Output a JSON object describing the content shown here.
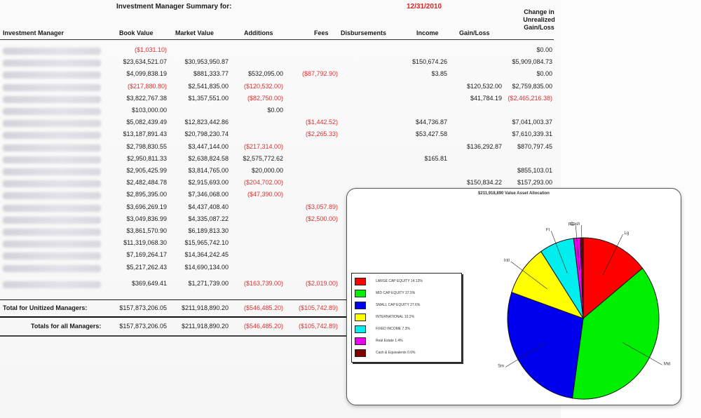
{
  "report": {
    "title": "Investment Manager Summary for:",
    "date": "12/31/2010",
    "change_header": [
      "Change in",
      "Unrealized",
      "Gain/Loss"
    ],
    "columns": [
      "Investment Manager",
      "Book Value",
      "Market Value",
      "Additions",
      "Fees",
      "Disbursements",
      "Income",
      "Gain/Loss"
    ],
    "rows": [
      {
        "book": "($1,031.10)",
        "market": "",
        "add": "",
        "fees": "",
        "disb": "",
        "income": "",
        "gain": "",
        "chg": "$0.00"
      },
      {
        "book": "$23,634,521.07",
        "market": "$30,953,950.87",
        "add": "",
        "fees": "",
        "disb": "",
        "income": "$150,674.26",
        "gain": "",
        "chg": "$5,909,084.73"
      },
      {
        "book": "$4,099,838.19",
        "market": "$881,333.77",
        "add": "$532,095.00",
        "fees": "($87,792.90)",
        "disb": "",
        "income": "$3.85",
        "gain": "",
        "chg": "$0.00"
      },
      {
        "book": "($217,880.80)",
        "market": "$2,541,835.00",
        "add": "($120,532.00)",
        "fees": "",
        "disb": "",
        "income": "",
        "gain": "$120,532.00",
        "chg": "$2,759,835.00"
      },
      {
        "book": "$3,822,767.38",
        "market": "$1,357,551.00",
        "add": "($82,750.00)",
        "fees": "",
        "disb": "",
        "income": "",
        "gain": "$41,784.19",
        "chg": "($2,465,216.38)"
      },
      {
        "book": "$103,000.00",
        "market": "",
        "add": "$0.00",
        "fees": "",
        "disb": "",
        "income": "",
        "gain": "",
        "chg": ""
      },
      {
        "book": "$5,082,439.49",
        "market": "$12,823,442.86",
        "add": "",
        "fees": "($1,442.52)",
        "disb": "",
        "income": "$44,736.87",
        "gain": "",
        "chg": "$7,041,003.37"
      },
      {
        "book": "$13,187,891.43",
        "market": "$20,798,230.74",
        "add": "",
        "fees": "($2,265.33)",
        "disb": "",
        "income": "$53,427.58",
        "gain": "",
        "chg": "$7,610,339.31"
      },
      {
        "book": "$2,798,830.55",
        "market": "$3,447,144.00",
        "add": "($217,314.00)",
        "fees": "",
        "disb": "",
        "income": "",
        "gain": "$136,292.87",
        "chg": "$870,797.45"
      },
      {
        "book": "$2,950,811.33",
        "market": "$2,638,824.58",
        "add": "$2,575,772.62",
        "fees": "",
        "disb": "",
        "income": "$165.81",
        "gain": "",
        "chg": ""
      },
      {
        "book": "$2,905,425.99",
        "market": "$3,814,765.00",
        "add": "$20,000.00",
        "fees": "",
        "disb": "",
        "income": "",
        "gain": "",
        "chg": "$855,103.01"
      },
      {
        "book": "$2,482,484.78",
        "market": "$2,915,693.00",
        "add": "($204,702.00)",
        "fees": "",
        "disb": "",
        "income": "",
        "gain": "$150,834.22",
        "chg": "$157,293.00"
      },
      {
        "book": "$2,895,395.00",
        "market": "$7,346,068.00",
        "add": "($47,390.00)",
        "fees": "",
        "disb": "",
        "income": "",
        "gain": "",
        "chg": ""
      },
      {
        "book": "$3,696,269.19",
        "market": "$4,437,408.40",
        "add": "",
        "fees": "($3,057.89)",
        "disb": "",
        "income": "",
        "gain": "",
        "chg": ""
      },
      {
        "book": "$3,049,836.99",
        "market": "$4,335,087.22",
        "add": "",
        "fees": "($2,500.00)",
        "disb": "",
        "income": "",
        "gain": "",
        "chg": ""
      },
      {
        "book": "$3,861,570.90",
        "market": "$6,189,813.30",
        "add": "",
        "fees": "",
        "disb": "",
        "income": "",
        "gain": "",
        "chg": ""
      },
      {
        "book": "$11,319,068.30",
        "market": "$15,965,742.10",
        "add": "",
        "fees": "",
        "disb": "",
        "income": "",
        "gain": "",
        "chg": ""
      },
      {
        "book": "$7,169,264.17",
        "market": "$14,364,242.45",
        "add": "",
        "fees": "",
        "disb": "",
        "income": "",
        "gain": "",
        "chg": ""
      },
      {
        "book": "$5,217,262.43",
        "market": "$14,690,134.00",
        "add": "",
        "fees": "",
        "disb": "",
        "income": "",
        "gain": "",
        "chg": ""
      },
      {
        "book": "$369,649.41",
        "market": "$1,271,739.00",
        "add": "($163,739.00)",
        "fees": "($2,019.00)",
        "disb": "",
        "income": "",
        "gain": "",
        "chg": ""
      }
    ],
    "totals": [
      {
        "label": "Total for Unitized Managers:",
        "book": "$157,873,206.05",
        "market": "$211,918,890.20",
        "add": "($546,485.20)",
        "fees": "($105,742.89)"
      },
      {
        "label": "Totals for all Managers:",
        "book": "$157,873,206.05",
        "market": "$211,918,890.20",
        "add": "($546,485.20)",
        "fees": "($105,742.89)"
      }
    ]
  },
  "chart_data": {
    "type": "pie",
    "title": "$211,918,890 Value Asset Allocation",
    "slices": [
      {
        "label": "LARGE CAP EQUITY  14.13%",
        "value": 14.13,
        "color": "#ff0000",
        "short": "Lg"
      },
      {
        "label": "MID CAP EQUITY  37.5%",
        "value": 37.5,
        "color": "#00ee00",
        "short": "Mid"
      },
      {
        "label": "SMALL CAP EQUITY  27.6%",
        "value": 27.6,
        "color": "#0000ee",
        "short": "Sm"
      },
      {
        "label": "INTERNATIONAL  10.2%",
        "value": 10.2,
        "color": "#ffff00",
        "short": "Intl"
      },
      {
        "label": "FIXED INCOME  7.3%",
        "value": 7.3,
        "color": "#00eeee",
        "short": "FI"
      },
      {
        "label": "Real Estate  1.4%",
        "value": 1.4,
        "color": "#ee00ee",
        "short": "RE"
      },
      {
        "label": "Cash & Equivalents  0.6%",
        "value": 0.6,
        "color": "#800000",
        "short": "Cash"
      }
    ],
    "legend_position": "left"
  }
}
